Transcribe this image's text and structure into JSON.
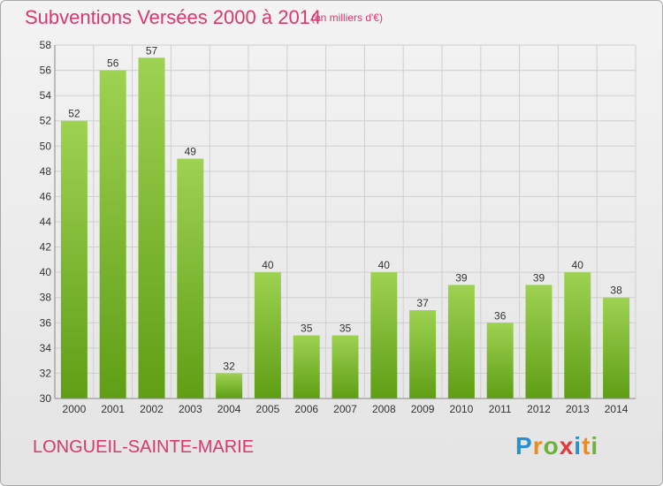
{
  "title": "Subventions Versées 2000 à 2014",
  "unit": "(en milliers d'€)",
  "place": "LONGUEIL-SAINTE-MARIE",
  "logo": {
    "letters": [
      "P",
      "r",
      "o",
      "x",
      "i",
      "t",
      "i"
    ],
    "colors": [
      "#2a8fd0",
      "#f08a1c",
      "#6cb23a",
      "#e23a3a",
      "#2a8fd0",
      "#f08a1c",
      "#6cb23a"
    ]
  },
  "colors": {
    "bar_top": "#9ed252",
    "bar_bottom": "#5f9e15",
    "title": "#d9376e",
    "grid": "#cfcfcf"
  },
  "chart_data": {
    "type": "bar",
    "categories": [
      "2000",
      "2001",
      "2002",
      "2003",
      "2004",
      "2005",
      "2006",
      "2007",
      "2008",
      "2009",
      "2010",
      "2011",
      "2012",
      "2013",
      "2014"
    ],
    "values": [
      52,
      56,
      57,
      49,
      32,
      40,
      35,
      35,
      40,
      37,
      39,
      36,
      39,
      40,
      38
    ],
    "ylim": [
      30,
      58
    ],
    "yticks": [
      30,
      32,
      34,
      36,
      38,
      40,
      42,
      44,
      46,
      48,
      50,
      52,
      54,
      56,
      58
    ],
    "grid": true
  }
}
